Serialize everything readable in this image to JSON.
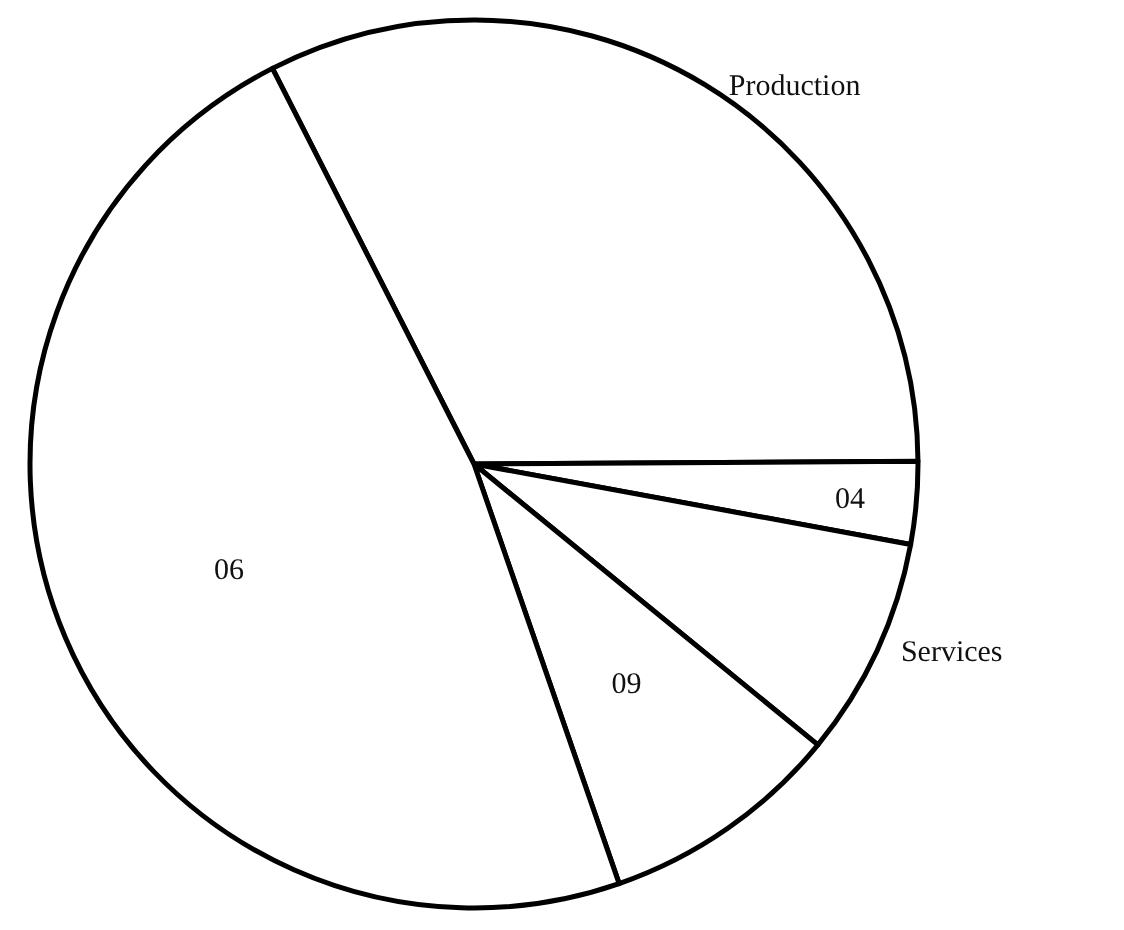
{
  "chart_data": {
    "type": "pie",
    "categories": [
      "Production",
      "04",
      "Services",
      "09",
      "06"
    ],
    "values": [
      32.4,
      3.0,
      8.0,
      8.8,
      47.8
    ],
    "colors": [
      "#ffffff",
      "#ffffff",
      "#ffffff",
      "#ffffff",
      "#ffffff"
    ]
  }
}
